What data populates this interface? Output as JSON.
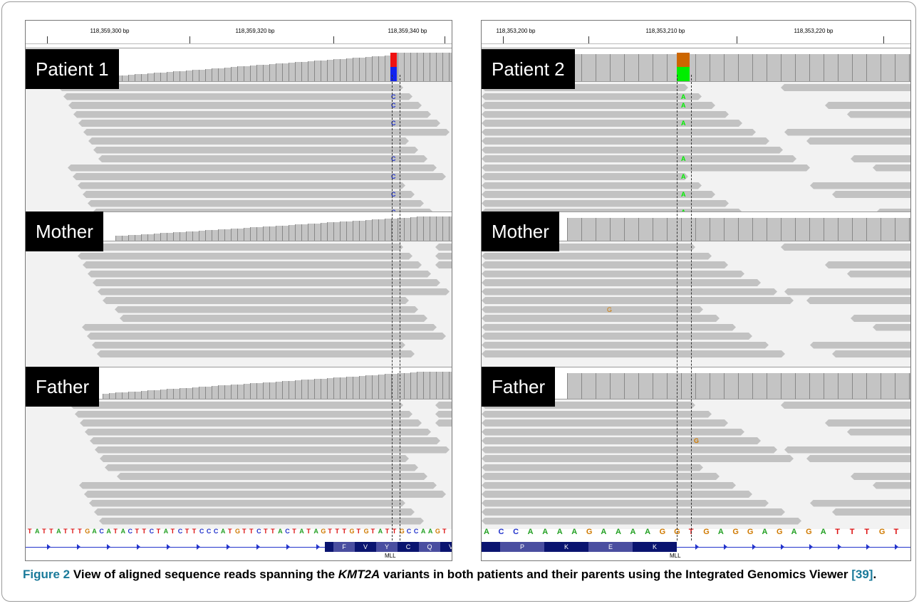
{
  "left": {
    "ruler": [
      "118,359,300 bp",
      "118,359,320 bp",
      "118,359,340 bp"
    ],
    "labels": [
      "Patient 1",
      "Mother",
      "Father"
    ],
    "variant_base": "C",
    "sequence": "TATTATTTGACATACTTCTATCTTCCCATGTTCTTACTATAGTTTGTGTATTGCCAAGT",
    "aa": [
      "F",
      "V",
      "Y",
      "C",
      "Q",
      "V"
    ],
    "gene": "MLL"
  },
  "right": {
    "ruler": [
      "118,353,200 bp",
      "118,353,210 bp",
      "118,353,220 bp"
    ],
    "labels": [
      "Patient 2",
      "Mother",
      "Father"
    ],
    "variant_base": "A",
    "other_base": "G",
    "sequence": "ACCAAAAGAAAAGGTGAGGAGAGATTTGT",
    "aa": [
      "P",
      "K",
      "E",
      "K"
    ],
    "gene": "MLL"
  },
  "colors": {
    "A": "#22a022",
    "C": "#2233cc",
    "G": "#d07a00",
    "T": "#dd1111",
    "read": "#c2c2c2",
    "alt_green": "#00ee00",
    "alt_orange": "#cc6600",
    "alt_red": "#ee1111",
    "alt_blue": "#1122ee"
  },
  "caption": {
    "fig": "Figure 2",
    "text1": "View of aligned sequence reads spanning the ",
    "gene": "KMT2A",
    "text2": " variants in both patients and their parents using the Integrated Genomics Viewer ",
    "ref": "[39]",
    "end": "."
  }
}
